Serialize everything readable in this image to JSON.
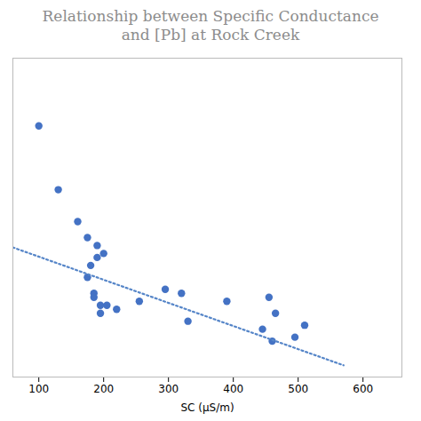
{
  "chart_data": {
    "type": "scatter",
    "title": "Relationship between Specific Conductance\nand [Pb] at Rock Creek",
    "xlabel": "SC (μS/m)",
    "series": [
      {
        "type": "scatter",
        "color": "#4472C4",
        "x": [
          100,
          130,
          160,
          175,
          180,
          175,
          185,
          190,
          185,
          190,
          195,
          195,
          200,
          205,
          220,
          255,
          295,
          320,
          330,
          390,
          445,
          455,
          460,
          465,
          495,
          510
        ],
        "values": [
          6.8,
          5.2,
          4.4,
          4.0,
          3.3,
          3.0,
          2.6,
          3.8,
          2.5,
          3.5,
          2.3,
          2.1,
          3.6,
          2.3,
          2.2,
          2.4,
          2.7,
          2.6,
          1.9,
          2.4,
          1.7,
          2.5,
          1.4,
          2.1,
          1.5,
          1.8
        ]
      },
      {
        "type": "line",
        "line_style": "dotted",
        "color": "#5585C8",
        "x": [
          60,
          570
        ],
        "values": [
          3.752,
          0.794
        ]
      }
    ],
    "xlim": [
      60,
      660
    ],
    "xticks": [
      100,
      200,
      300,
      400,
      500,
      600
    ],
    "ylim": [
      0.5,
      8.5
    ],
    "tick_labels": "x",
    "grid": false
  }
}
